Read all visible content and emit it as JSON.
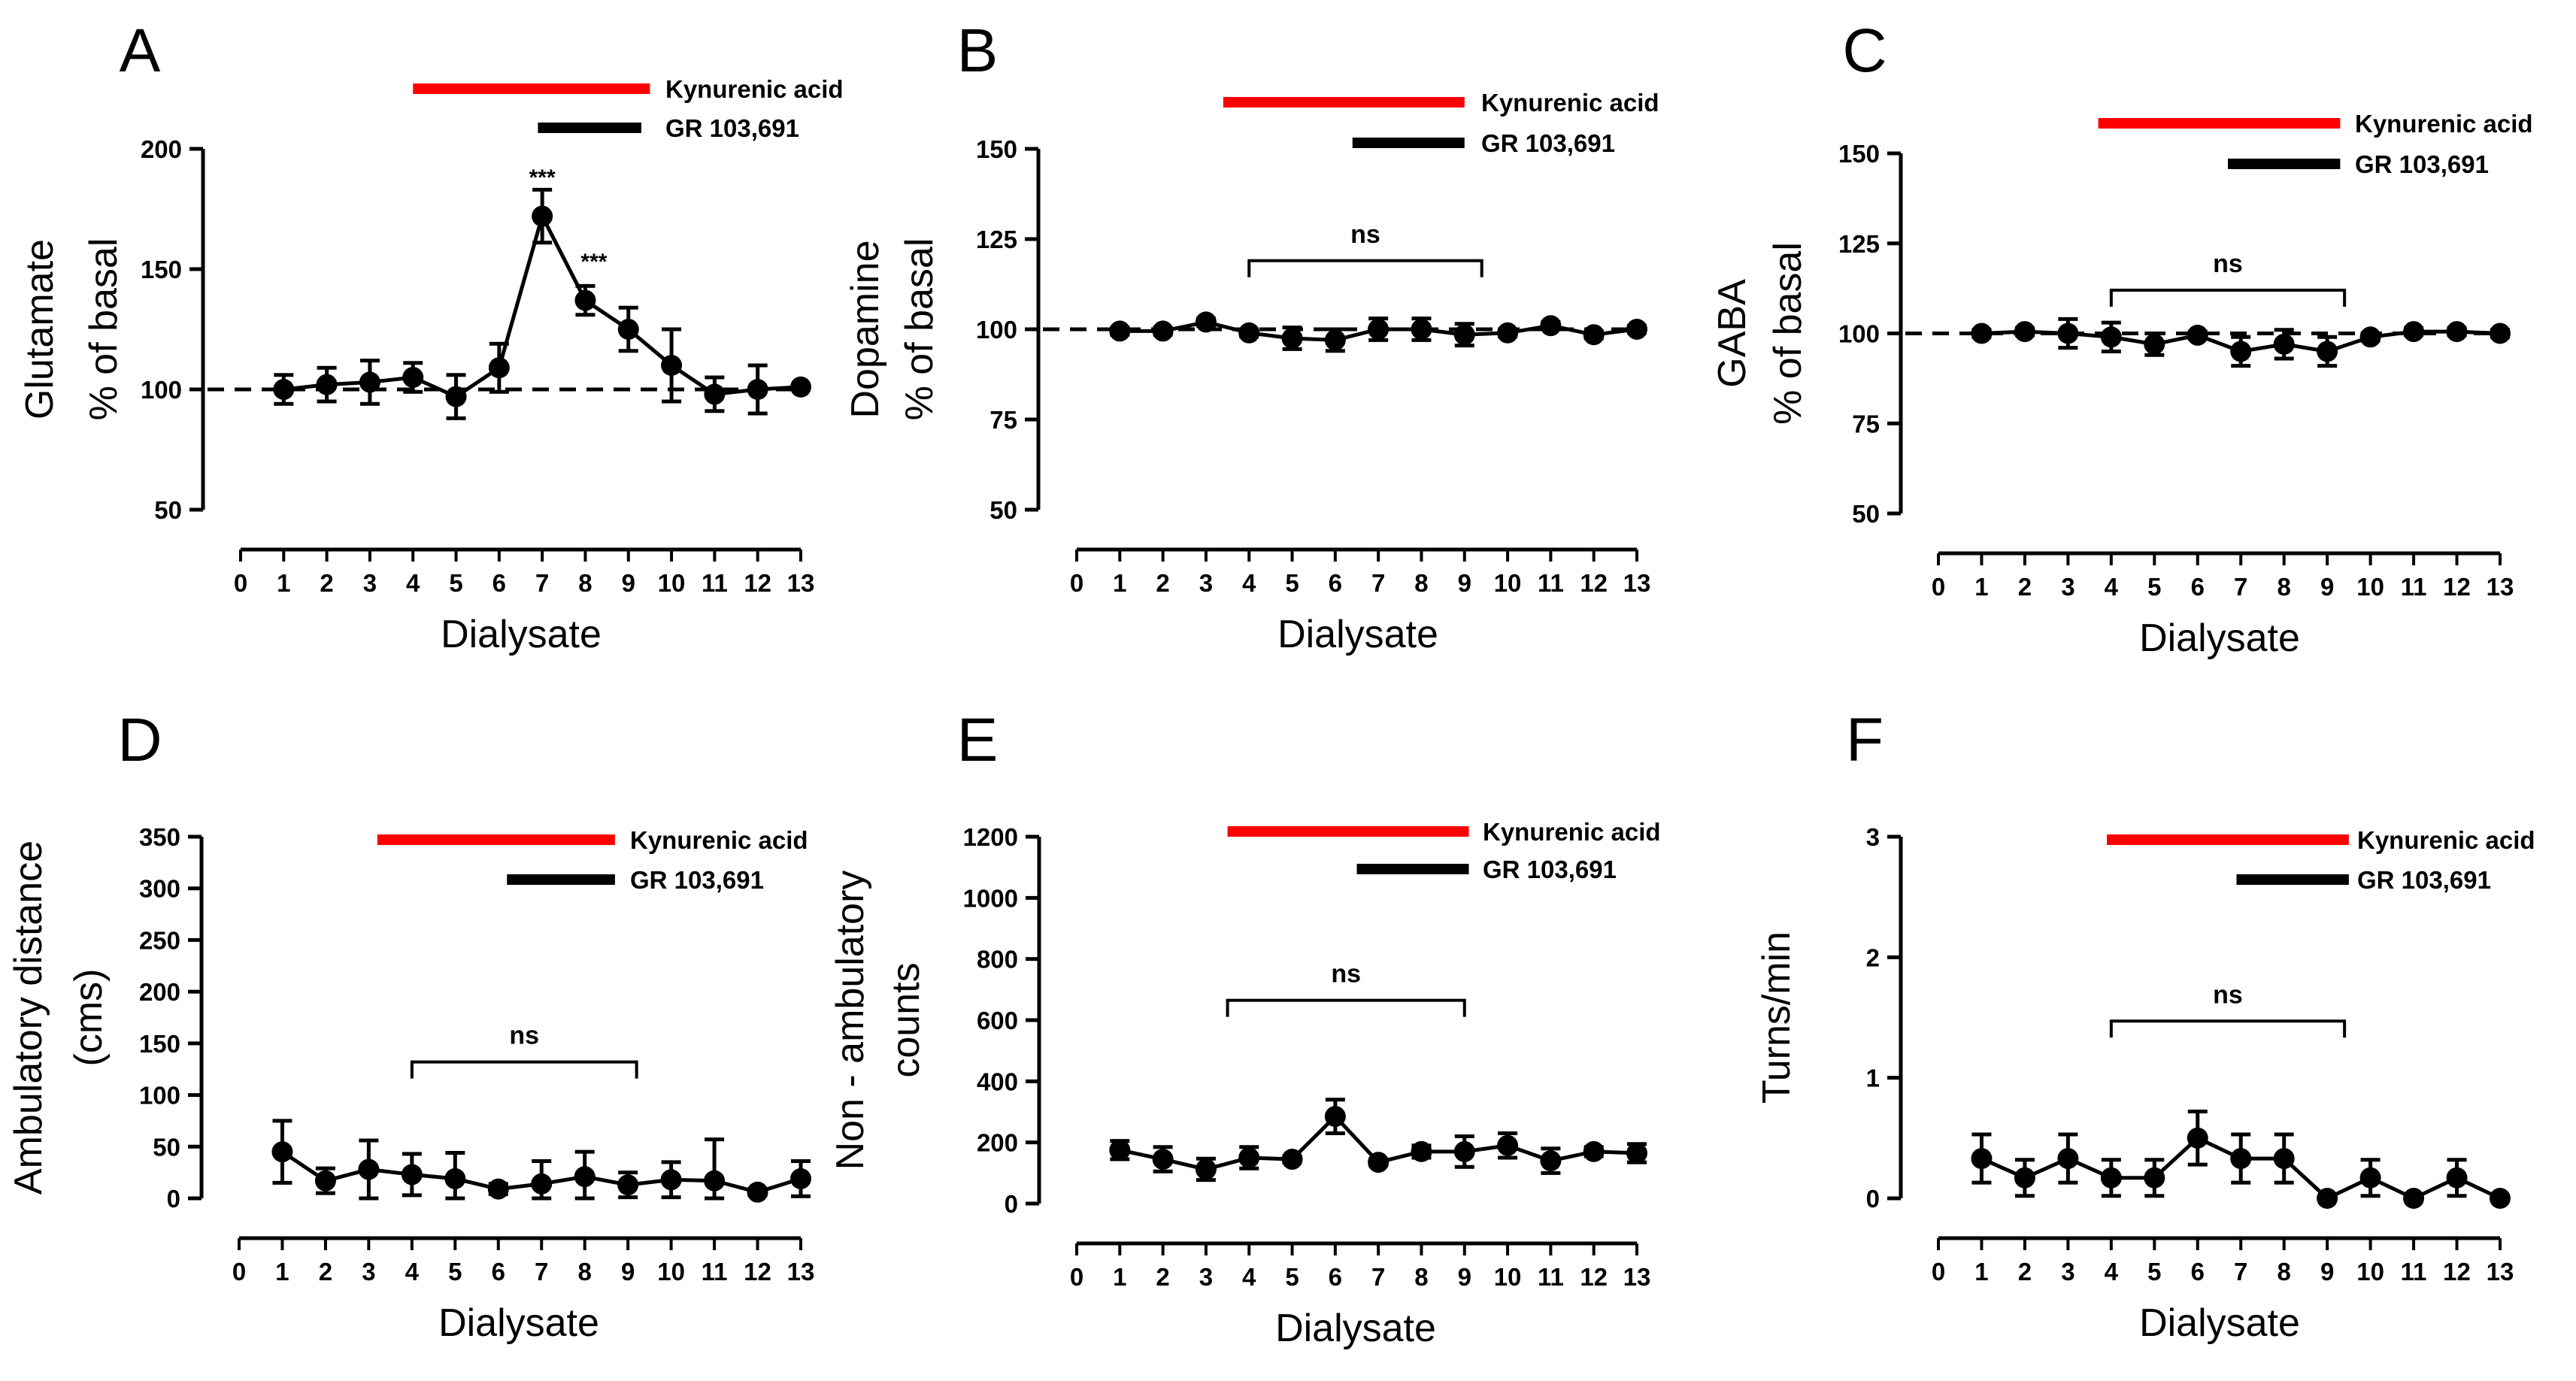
{
  "colors": {
    "kynurenic_bar": "#ff0000",
    "gr_bar": "#000000",
    "series": "#000000"
  },
  "chart_data": [
    {
      "panel": "A",
      "type": "line",
      "title": "",
      "xlabel": "Dialysate",
      "ylabel_lines": [
        "Glutamate",
        "% of basal"
      ],
      "x_ticks": [
        0,
        1,
        2,
        3,
        4,
        5,
        6,
        7,
        8,
        9,
        10,
        11,
        12,
        13
      ],
      "y_ticks": [
        50,
        100,
        150,
        200
      ],
      "ylim": [
        50,
        200
      ],
      "xlim": [
        0,
        13
      ],
      "x": [
        1,
        2,
        3,
        4,
        5,
        6,
        7,
        8,
        9,
        10,
        11,
        12,
        13
      ],
      "values": [
        100,
        102,
        103,
        105,
        97,
        109,
        172,
        137,
        125,
        110,
        98,
        100,
        101
      ],
      "errors": [
        6,
        7,
        9,
        6,
        9,
        10,
        11,
        6,
        9,
        15,
        7,
        10,
        0
      ],
      "baseline": 100,
      "legend": [
        {
          "label": "Kynurenic acid",
          "color": "#ff0000",
          "from": 4,
          "to": 9.5
        },
        {
          "label": "GR 103,691",
          "color": "#000000",
          "from": 6.9,
          "to": 9.3
        }
      ],
      "annotations": [
        {
          "text": "***",
          "x": 7,
          "y": 185
        },
        {
          "text": "***",
          "x": 8.2,
          "y": 150
        }
      ]
    },
    {
      "panel": "B",
      "type": "line",
      "title": "",
      "xlabel": "Dialysate",
      "ylabel_lines": [
        "Dopamine",
        "% of basal"
      ],
      "x_ticks": [
        0,
        1,
        2,
        3,
        4,
        5,
        6,
        7,
        8,
        9,
        10,
        11,
        12,
        13
      ],
      "y_ticks": [
        50,
        75,
        100,
        125,
        150
      ],
      "ylim": [
        50,
        150
      ],
      "xlim": [
        0,
        13
      ],
      "x": [
        1,
        2,
        3,
        4,
        5,
        6,
        7,
        8,
        9,
        10,
        11,
        12,
        13
      ],
      "values": [
        99.5,
        99.5,
        102,
        99,
        97.5,
        97,
        100,
        100,
        98.5,
        99,
        101,
        98.5,
        100
      ],
      "errors": [
        1,
        1,
        1,
        1,
        3,
        3,
        3,
        3,
        3,
        1,
        1,
        1,
        1
      ],
      "baseline": 100,
      "legend": [
        {
          "label": "Kynurenic acid",
          "color": "#ff0000",
          "from": 3.4,
          "to": 9
        },
        {
          "label": "GR 103,691",
          "color": "#000000",
          "from": 6.4,
          "to": 9
        }
      ],
      "bracket": {
        "label": "ns",
        "from": 4,
        "to": 9.4,
        "y": 119
      }
    },
    {
      "panel": "C",
      "type": "line",
      "title": "",
      "xlabel": "Dialysate",
      "ylabel_lines": [
        "GABA",
        "% of basal"
      ],
      "x_ticks": [
        0,
        1,
        2,
        3,
        4,
        5,
        6,
        7,
        8,
        9,
        10,
        11,
        12,
        13
      ],
      "y_ticks": [
        50,
        75,
        100,
        125,
        150
      ],
      "ylim": [
        50,
        150
      ],
      "xlim": [
        0,
        13
      ],
      "x": [
        1,
        2,
        3,
        4,
        5,
        6,
        7,
        8,
        9,
        10,
        11,
        12,
        13
      ],
      "values": [
        100,
        100.5,
        100,
        99,
        97,
        99.5,
        95,
        97,
        95,
        99,
        100.5,
        100.5,
        100
      ],
      "errors": [
        1,
        1,
        4,
        4,
        3,
        1,
        4,
        4,
        4,
        1,
        1,
        1,
        1
      ],
      "baseline": 100,
      "legend": [
        {
          "label": "Kynurenic acid",
          "color": "#ff0000",
          "from": 3.7,
          "to": 9.3
        },
        {
          "label": "GR 103,691",
          "color": "#000000",
          "from": 6.7,
          "to": 9.3
        }
      ],
      "bracket": {
        "label": "ns",
        "from": 4,
        "to": 9.4,
        "y": 112
      }
    },
    {
      "panel": "D",
      "type": "line",
      "title": "",
      "xlabel": "Dialysate",
      "ylabel_lines": [
        "Ambulatory distance",
        "(cms)"
      ],
      "x_ticks": [
        0,
        1,
        2,
        3,
        4,
        5,
        6,
        7,
        8,
        9,
        10,
        11,
        12,
        13
      ],
      "y_ticks": [
        0,
        50,
        100,
        150,
        200,
        250,
        300,
        350
      ],
      "ylim": [
        0,
        350
      ],
      "xlim": [
        0,
        13
      ],
      "x": [
        1,
        2,
        3,
        4,
        5,
        6,
        7,
        8,
        9,
        10,
        11,
        12,
        13
      ],
      "values": [
        45,
        17,
        28,
        23,
        19,
        9,
        14,
        21,
        13,
        18,
        17,
        6,
        19
      ],
      "errors": [
        30,
        12,
        28,
        20,
        25,
        5,
        22,
        24,
        12,
        17,
        40,
        3,
        17
      ],
      "legend": [
        {
          "label": "Kynurenic acid",
          "color": "#ff0000",
          "from": 3.2,
          "to": 8.7
        },
        {
          "label": "GR 103,691",
          "color": "#000000",
          "from": 6.2,
          "to": 8.7
        }
      ],
      "bracket": {
        "label": "ns",
        "from": 4,
        "to": 9.2,
        "y": 132
      }
    },
    {
      "panel": "E",
      "type": "line",
      "title": "",
      "xlabel": "Dialysate",
      "ylabel_lines": [
        "Non - ambulatory",
        "counts"
      ],
      "x_ticks": [
        0,
        1,
        2,
        3,
        4,
        5,
        6,
        7,
        8,
        9,
        10,
        11,
        12,
        13
      ],
      "y_ticks": [
        0,
        200,
        400,
        600,
        800,
        1000,
        1200
      ],
      "ylim": [
        0,
        1200
      ],
      "xlim": [
        0,
        13
      ],
      "x": [
        1,
        2,
        3,
        4,
        5,
        6,
        7,
        8,
        9,
        10,
        11,
        12,
        13
      ],
      "values": [
        175,
        145,
        112,
        150,
        145,
        285,
        135,
        170,
        170,
        190,
        140,
        170,
        165
      ],
      "errors": [
        30,
        40,
        35,
        35,
        10,
        55,
        10,
        20,
        50,
        40,
        40,
        15,
        30
      ],
      "legend": [
        {
          "label": "Kynurenic acid",
          "color": "#ff0000",
          "from": 3.5,
          "to": 9.1
        },
        {
          "label": "GR 103,691",
          "color": "#000000",
          "from": 6.5,
          "to": 9.1
        }
      ],
      "bracket": {
        "label": "ns",
        "from": 3.5,
        "to": 9,
        "y": 665
      }
    },
    {
      "panel": "F",
      "type": "line",
      "title": "",
      "xlabel": "Dialysate",
      "ylabel_lines": [
        "Turns/min"
      ],
      "x_ticks": [
        0,
        1,
        2,
        3,
        4,
        5,
        6,
        7,
        8,
        9,
        10,
        11,
        12,
        13
      ],
      "y_ticks": [
        0,
        1,
        2,
        3
      ],
      "ylim": [
        0,
        3
      ],
      "xlim": [
        0,
        13
      ],
      "x": [
        1,
        2,
        3,
        4,
        5,
        6,
        7,
        8,
        9,
        10,
        11,
        12,
        13
      ],
      "values": [
        0.33,
        0.17,
        0.33,
        0.17,
        0.17,
        0.5,
        0.33,
        0.33,
        0,
        0.17,
        0,
        0.17,
        0
      ],
      "errors": [
        0.2,
        0.15,
        0.2,
        0.15,
        0.15,
        0.22,
        0.2,
        0.2,
        0.02,
        0.15,
        0.02,
        0.15,
        0.02
      ],
      "legend": [
        {
          "label": "Kynurenic acid",
          "color": "#ff0000",
          "from": 3.9,
          "to": 9.5
        },
        {
          "label": "GR 103,691",
          "color": "#000000",
          "from": 6.9,
          "to": 9.5
        }
      ],
      "bracket": {
        "label": "ns",
        "from": 4,
        "to": 9.4,
        "y": 1.47
      }
    }
  ]
}
